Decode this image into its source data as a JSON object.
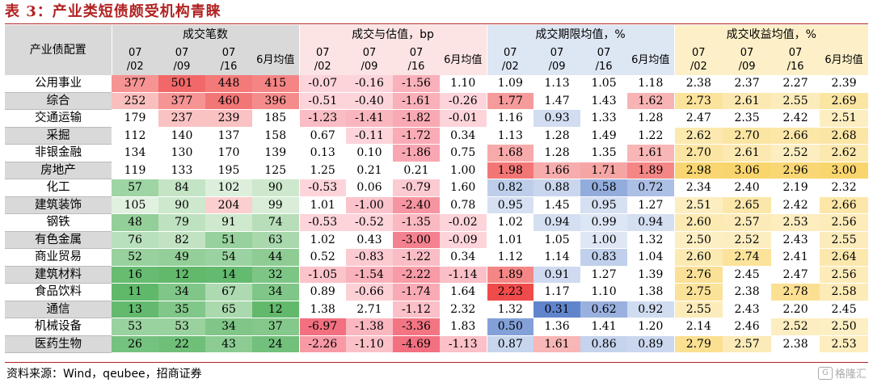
{
  "title": "表 3：产业类短债颇受机构青睐",
  "source": "资料来源：Wind，qeubee，招商证券",
  "watermark": "格隆汇",
  "header": {
    "row_label": "产业债配置",
    "groups": [
      "成交笔数",
      "成交与估值，bp",
      "成交期限均值，%",
      "成交收益均值，%"
    ],
    "subcols": [
      "07/02",
      "07/09",
      "07/16",
      "6月均值"
    ]
  },
  "rows": [
    {
      "name": "公用事业",
      "vals": [
        "377",
        "501",
        "448",
        "415",
        "-0.07",
        "-0.16",
        "-1.56",
        "1.10",
        "1.09",
        "1.13",
        "1.05",
        "1.18",
        "2.38",
        "2.37",
        "2.27",
        "2.39"
      ]
    },
    {
      "name": "综合",
      "vals": [
        "252",
        "377",
        "460",
        "396",
        "-0.51",
        "-0.40",
        "-1.61",
        "-0.26",
        "1.77",
        "1.47",
        "1.43",
        "1.62",
        "2.73",
        "2.61",
        "2.55",
        "2.69"
      ]
    },
    {
      "name": "交通运输",
      "vals": [
        "179",
        "237",
        "239",
        "185",
        "-1.23",
        "-1.41",
        "-1.82",
        "-0.01",
        "1.16",
        "0.93",
        "1.33",
        "1.28",
        "2.47",
        "2.35",
        "2.42",
        "2.51"
      ]
    },
    {
      "name": "采掘",
      "vals": [
        "112",
        "140",
        "137",
        "158",
        "0.67",
        "-0.11",
        "-1.72",
        "0.34",
        "1.13",
        "1.28",
        "1.49",
        "1.22",
        "2.62",
        "2.70",
        "2.66",
        "2.68"
      ]
    },
    {
      "name": "非银金融",
      "vals": [
        "134",
        "130",
        "170",
        "139",
        "0.13",
        "0.10",
        "-1.86",
        "0.75",
        "1.68",
        "1.28",
        "1.35",
        "1.61",
        "2.70",
        "2.61",
        "2.52",
        "2.62"
      ]
    },
    {
      "name": "房地产",
      "vals": [
        "119",
        "133",
        "195",
        "125",
        "1.25",
        "0.21",
        "0.21",
        "1.00",
        "1.98",
        "1.66",
        "1.71",
        "1.89",
        "2.98",
        "3.06",
        "2.96",
        "3.00"
      ]
    },
    {
      "name": "化工",
      "vals": [
        "57",
        "84",
        "102",
        "90",
        "-0.53",
        "0.06",
        "-0.79",
        "1.60",
        "0.82",
        "0.88",
        "0.58",
        "0.72",
        "2.34",
        "2.40",
        "2.19",
        "2.32"
      ]
    },
    {
      "name": "建筑装饰",
      "vals": [
        "105",
        "90",
        "204",
        "99",
        "1.01",
        "-1.00",
        "-2.40",
        "0.78",
        "0.95",
        "1.45",
        "0.95",
        "1.27",
        "2.51",
        "2.65",
        "2.42",
        "2.66"
      ]
    },
    {
      "name": "钢铁",
      "vals": [
        "48",
        "79",
        "91",
        "74",
        "-0.53",
        "-0.52",
        "-1.35",
        "-0.02",
        "1.02",
        "0.94",
        "0.99",
        "0.94",
        "2.60",
        "2.57",
        "2.53",
        "2.56"
      ]
    },
    {
      "name": "有色金属",
      "vals": [
        "76",
        "82",
        "51",
        "63",
        "1.02",
        "0.43",
        "-3.00",
        "-0.09",
        "1.01",
        "1.05",
        "1.00",
        "1.32",
        "2.50",
        "2.52",
        "2.43",
        "2.55"
      ]
    },
    {
      "name": "商业贸易",
      "vals": [
        "52",
        "49",
        "54",
        "44",
        "0.52",
        "-0.83",
        "-1.22",
        "0.34",
        "1.12",
        "1.14",
        "0.83",
        "1.04",
        "2.60",
        "2.74",
        "2.41",
        "2.64"
      ]
    },
    {
      "name": "建筑材料",
      "vals": [
        "16",
        "12",
        "14",
        "32",
        "-1.05",
        "-1.54",
        "-2.22",
        "-1.14",
        "1.89",
        "0.91",
        "1.27",
        "1.39",
        "2.76",
        "2.45",
        "2.47",
        "2.56"
      ]
    },
    {
      "name": "食品饮料",
      "vals": [
        "11",
        "34",
        "67",
        "34",
        "0.89",
        "-0.66",
        "-1.74",
        "1.64",
        "2.23",
        "1.17",
        "1.10",
        "1.38",
        "2.75",
        "2.38",
        "2.78",
        "2.58"
      ]
    },
    {
      "name": "通信",
      "vals": [
        "13",
        "35",
        "65",
        "12",
        "1.38",
        "2.71",
        "-1.12",
        "2.32",
        "1.32",
        "0.31",
        "0.62",
        "0.92",
        "2.55",
        "2.43",
        "2.20",
        "2.45"
      ]
    },
    {
      "name": "机械设备",
      "vals": [
        "53",
        "53",
        "34",
        "37",
        "-6.97",
        "-1.38",
        "-3.36",
        "1.83",
        "0.50",
        "1.36",
        "1.41",
        "1.20",
        "2.14",
        "2.46",
        "2.52",
        "2.50"
      ]
    },
    {
      "name": "医药生物",
      "vals": [
        "26",
        "22",
        "43",
        "24",
        "-2.26",
        "-1.10",
        "-4.69",
        "-1.13",
        "0.87",
        "1.61",
        "0.86",
        "0.89",
        "2.79",
        "2.57",
        "2.38",
        "2.53"
      ]
    }
  ],
  "colors": {
    "title": "#b22222",
    "group1_header": "#d9d9d9",
    "group2_header": "#fce4e4",
    "group3_header": "#dde6f3",
    "group4_header": "#fdf0c8"
  }
}
